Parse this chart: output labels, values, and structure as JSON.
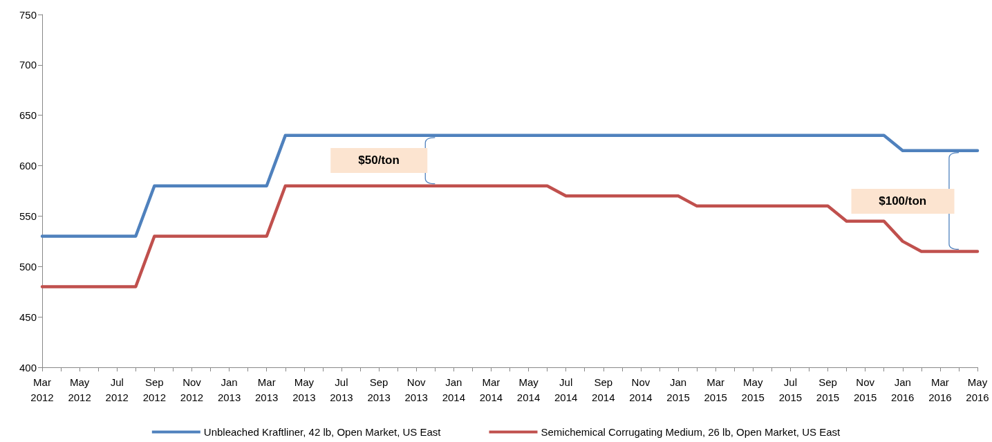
{
  "chart_data": {
    "type": "line",
    "categories": [
      "Mar 2012",
      null,
      "May 2012",
      null,
      "Jul 2012",
      null,
      "Sep 2012",
      null,
      "Nov 2012",
      null,
      "Jan 2013",
      null,
      "Mar 2013",
      null,
      "May 2013",
      null,
      "Jul 2013",
      null,
      "Sep 2013",
      null,
      "Nov 2013",
      null,
      "Jan 2014",
      null,
      "Mar 2014",
      null,
      "May 2014",
      null,
      "Jul 2014",
      null,
      "Sep 2014",
      null,
      "Nov 2014",
      null,
      "Jan 2015",
      null,
      "Mar 2015",
      null,
      "May 2015",
      null,
      "Jul 2015",
      null,
      "Sep 2015",
      null,
      "Nov 2015",
      null,
      "Jan 2016",
      null,
      "Mar 2016",
      null,
      "May 2016"
    ],
    "series": [
      {
        "name": "Unbleached Kraftliner, 42 lb, Open Market, US East",
        "color": "#4f81bd",
        "values": [
          530,
          530,
          530,
          530,
          530,
          530,
          580,
          580,
          580,
          580,
          580,
          580,
          580,
          630,
          630,
          630,
          630,
          630,
          630,
          630,
          630,
          630,
          630,
          630,
          630,
          630,
          630,
          630,
          630,
          630,
          630,
          630,
          630,
          630,
          630,
          630,
          630,
          630,
          630,
          630,
          630,
          630,
          630,
          630,
          630,
          630,
          615,
          615,
          615,
          615,
          615
        ]
      },
      {
        "name": "Semichemical Corrugating Medium, 26 lb, Open Market, US East",
        "color": "#c0504d",
        "values": [
          480,
          480,
          480,
          480,
          480,
          480,
          530,
          530,
          530,
          530,
          530,
          530,
          530,
          580,
          580,
          580,
          580,
          580,
          580,
          580,
          580,
          580,
          580,
          580,
          580,
          580,
          580,
          580,
          570,
          570,
          570,
          570,
          570,
          570,
          570,
          560,
          560,
          560,
          560,
          560,
          560,
          560,
          560,
          545,
          545,
          545,
          525,
          515,
          515,
          515,
          515
        ]
      }
    ],
    "ylim": [
      400,
      750
    ],
    "yticks": [
      400,
      450,
      500,
      550,
      600,
      650,
      700,
      750
    ],
    "annotations": [
      "$50/ton",
      "$100/ton"
    ],
    "grid": false,
    "legend": "bottom",
    "marker": "none",
    "line_style": "solid"
  }
}
